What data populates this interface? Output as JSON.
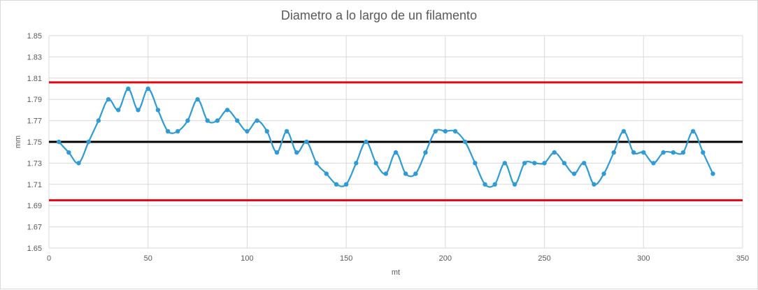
{
  "chart_data": {
    "type": "line",
    "title": "Diametro a lo largo de un filamento",
    "xlabel": "mt",
    "ylabel": "mm",
    "xlim": [
      0,
      350
    ],
    "ylim": [
      1.65,
      1.85
    ],
    "xticks": [
      0,
      50,
      100,
      150,
      200,
      250,
      300,
      350
    ],
    "yticks": [
      1.65,
      1.67,
      1.69,
      1.71,
      1.73,
      1.75,
      1.77,
      1.79,
      1.81,
      1.83,
      1.85
    ],
    "xtick_labels": [
      "0",
      "50",
      "100",
      "150",
      "200",
      "250",
      "300",
      "350"
    ],
    "ytick_labels": [
      "1.65",
      "1.67",
      "1.69",
      "1.71",
      "1.73",
      "1.75",
      "1.77",
      "1.79",
      "1.81",
      "1.83",
      "1.85"
    ],
    "grid": true,
    "legend": "none",
    "series": [
      {
        "color": "#2e9bd6",
        "smooth": true,
        "markers": true,
        "x": [
          5,
          10,
          15,
          20,
          25,
          30,
          35,
          40,
          45,
          50,
          55,
          60,
          65,
          70,
          75,
          80,
          85,
          90,
          95,
          100,
          105,
          110,
          115,
          120,
          125,
          130,
          135,
          140,
          145,
          150,
          155,
          160,
          165,
          170,
          175,
          180,
          185,
          190,
          195,
          200,
          205,
          210,
          215,
          220,
          225,
          230,
          235,
          240,
          245,
          250,
          255,
          260,
          265,
          270,
          275,
          280,
          285,
          290,
          295,
          300,
          305,
          310,
          315,
          320,
          325,
          330,
          335
        ],
        "y": [
          1.75,
          1.74,
          1.73,
          1.75,
          1.77,
          1.79,
          1.78,
          1.8,
          1.78,
          1.8,
          1.78,
          1.76,
          1.76,
          1.77,
          1.79,
          1.77,
          1.77,
          1.78,
          1.77,
          1.76,
          1.77,
          1.76,
          1.74,
          1.76,
          1.74,
          1.75,
          1.73,
          1.72,
          1.71,
          1.71,
          1.73,
          1.75,
          1.73,
          1.72,
          1.74,
          1.72,
          1.72,
          1.74,
          1.76,
          1.76,
          1.76,
          1.75,
          1.73,
          1.71,
          1.71,
          1.73,
          1.71,
          1.73,
          1.73,
          1.73,
          1.74,
          1.73,
          1.72,
          1.73,
          1.71,
          1.72,
          1.74,
          1.76,
          1.74,
          1.74,
          1.73,
          1.74,
          1.74,
          1.74,
          1.76,
          1.74,
          1.72
        ]
      }
    ],
    "reference_lines": [
      {
        "value": 1.806,
        "color": "#e30613"
      },
      {
        "value": 1.75,
        "color": "#000000"
      },
      {
        "value": 1.695,
        "color": "#e30613"
      }
    ]
  }
}
